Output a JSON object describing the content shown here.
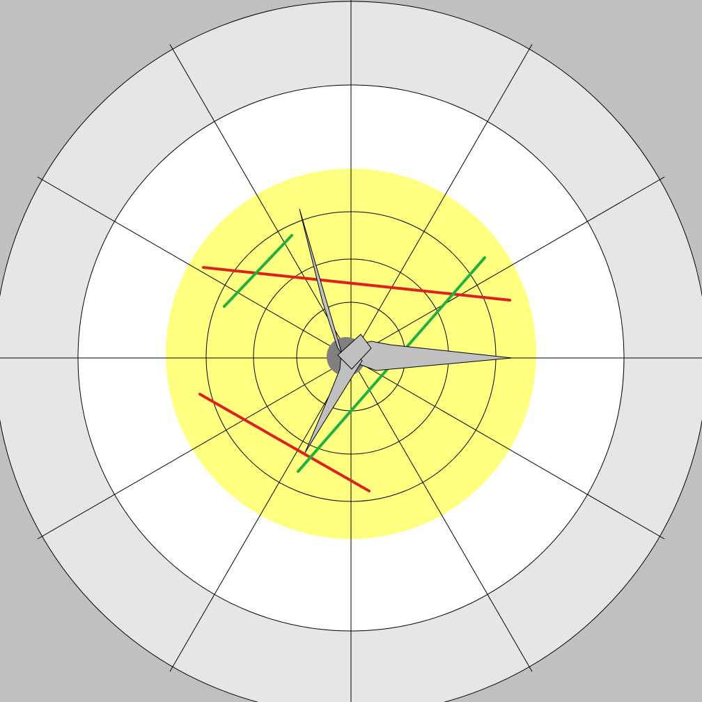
{
  "scene": {
    "kind": "radial-target-view",
    "colors": {
      "background": "#c0c0c0",
      "outer_ring": "#e6e6e6",
      "middle_ring": "#ffffff",
      "inner_zone": "#ffff80",
      "grid_lines": "#000000",
      "hub": "#808080",
      "blades": "#c0c0c0",
      "red_lines": "#e02020",
      "green_lines": "#20b040"
    },
    "radial_spoke_count": 12,
    "inner_ring_count": 4,
    "red_line_count": 2,
    "green_line_count": 2,
    "propeller_blade_count": 3
  }
}
